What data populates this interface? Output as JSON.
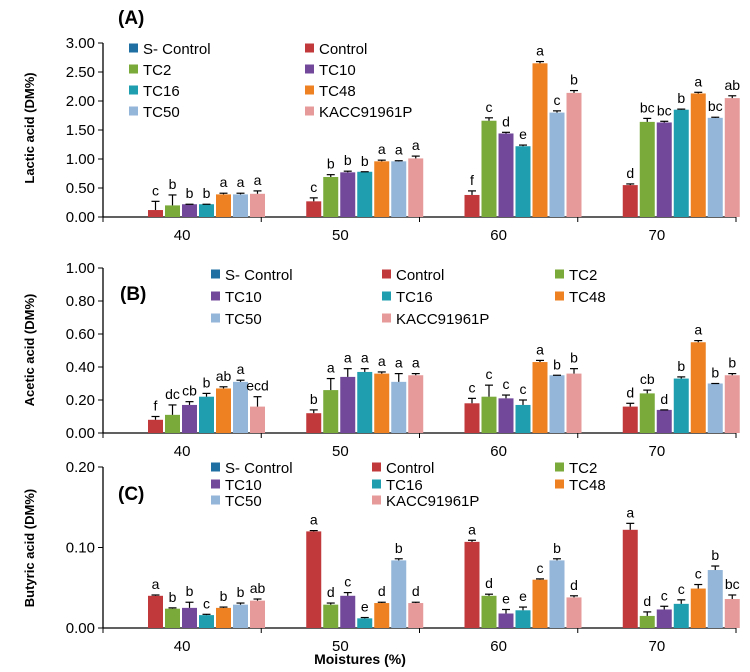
{
  "chart_data": {
    "xlabel": "Moistures (%)",
    "categories": [
      "40",
      "50",
      "60",
      "70"
    ],
    "series_names": [
      "S- Control",
      "Control",
      "TC2",
      "TC10",
      "TC16",
      "TC48",
      "TC50",
      "KACC91961P"
    ],
    "colors": [
      "#1F6FA3",
      "#C2393B",
      "#79AA3A",
      "#71489A",
      "#1E9EAF",
      "#EE8222",
      "#94B6D9",
      "#E79A9A"
    ],
    "panels": [
      {
        "type": "bar",
        "label": "(A)",
        "ylabel": "Lactic acid  (DM%)",
        "ylim": [
          0,
          3
        ],
        "ytick_labels": [
          "0.00",
          "0.50",
          "1.00",
          "1.50",
          "2.00",
          "2.50",
          "3.00"
        ],
        "legend_position": "top-left",
        "values": [
          [
            0,
            0.12,
            0.2,
            0.22,
            0.22,
            0.39,
            0.39,
            0.4
          ],
          [
            0,
            0.27,
            0.69,
            0.77,
            0.78,
            0.96,
            0.96,
            1.01
          ],
          [
            0,
            0.38,
            1.66,
            1.44,
            1.22,
            2.65,
            1.8,
            2.14
          ],
          [
            0,
            0.55,
            1.64,
            1.63,
            1.85,
            2.13,
            1.71,
            2.05
          ]
        ],
        "errors": [
          [
            0,
            0.15,
            0.18,
            0,
            0,
            0.02,
            0.02,
            0.05
          ],
          [
            0,
            0.06,
            0.04,
            0.02,
            0,
            0.02,
            0.01,
            0.04
          ],
          [
            0,
            0.07,
            0.05,
            0.02,
            0.02,
            0.03,
            0.03,
            0.04
          ],
          [
            0,
            0.02,
            0.06,
            0.02,
            0.01,
            0.02,
            0.01,
            0.04
          ]
        ],
        "letters": [
          [
            "",
            "c",
            "b",
            "b",
            "b",
            "a",
            "a",
            "a"
          ],
          [
            "",
            "c",
            "b",
            "b",
            "b",
            "a",
            "a",
            "a"
          ],
          [
            "",
            "f",
            "c",
            "d",
            "e",
            "a",
            "c",
            "b"
          ],
          [
            "",
            "d",
            "bc",
            "bc",
            "b",
            "a",
            "bc",
            "ab"
          ]
        ]
      },
      {
        "type": "bar",
        "label": "(B)",
        "ylabel": "Acetic acid  (DM%)",
        "ylim": [
          0,
          1
        ],
        "ytick_labels": [
          "0.00",
          "0.20",
          "0.40",
          "0.60",
          "0.80",
          "1.00"
        ],
        "legend_position": "top",
        "values": [
          [
            0,
            0.08,
            0.11,
            0.17,
            0.22,
            0.27,
            0.31,
            0.16
          ],
          [
            0,
            0.12,
            0.26,
            0.34,
            0.37,
            0.36,
            0.31,
            0.35
          ],
          [
            0,
            0.18,
            0.22,
            0.21,
            0.17,
            0.43,
            0.35,
            0.36
          ],
          [
            0,
            0.16,
            0.24,
            0.14,
            0.33,
            0.55,
            0.3,
            0.35
          ]
        ],
        "errors": [
          [
            0,
            0.02,
            0.06,
            0.02,
            0.02,
            0.01,
            0.01,
            0.06
          ],
          [
            0,
            0.02,
            0.07,
            0.05,
            0.02,
            0.01,
            0.05,
            0.01
          ],
          [
            0,
            0.03,
            0.07,
            0.02,
            0.03,
            0.01,
            0,
            0.03
          ],
          [
            0,
            0.02,
            0.02,
            0,
            0.01,
            0.01,
            0,
            0.01
          ]
        ],
        "letters": [
          [
            "",
            "f",
            "dc",
            "cb",
            "b",
            "ab",
            "a",
            "ecd"
          ],
          [
            "",
            "b",
            "a",
            "a",
            "a",
            "a",
            "a",
            "a"
          ],
          [
            "",
            "c",
            "c",
            "c",
            "c",
            "a",
            "b",
            "b"
          ],
          [
            "",
            "d",
            "cb",
            "d",
            "b",
            "a",
            "b",
            "b"
          ]
        ]
      },
      {
        "type": "bar",
        "label": "(C)",
        "ylabel": "Butyric acid  (DM%)",
        "ylim": [
          0,
          0.2
        ],
        "ytick_labels": [
          "0.00",
          "0.10",
          "0.20"
        ],
        "legend_position": "top",
        "values": [
          [
            0,
            0.04,
            0.024,
            0.025,
            0.016,
            0.025,
            0.029,
            0.034
          ],
          [
            0,
            0.12,
            0.029,
            0.04,
            0.012,
            0.031,
            0.084,
            0.031
          ],
          [
            0,
            0.107,
            0.04,
            0.018,
            0.022,
            0.06,
            0.084,
            0.038
          ],
          [
            0,
            0.122,
            0.015,
            0.023,
            0.03,
            0.049,
            0.072,
            0.036
          ]
        ],
        "errors": [
          [
            0,
            0.001,
            0.001,
            0.007,
            0.001,
            0.001,
            0.002,
            0.002
          ],
          [
            0,
            0.001,
            0.002,
            0.004,
            0.001,
            0.001,
            0.002,
            0.001
          ],
          [
            0,
            0.002,
            0.002,
            0.005,
            0.004,
            0.001,
            0.002,
            0.002
          ],
          [
            0,
            0.008,
            0.005,
            0.004,
            0.005,
            0.005,
            0.005,
            0.005
          ]
        ],
        "letters": [
          [
            "",
            "a",
            "b",
            "b",
            "c",
            "b",
            "b",
            "ab"
          ],
          [
            "",
            "a",
            "d",
            "c",
            "e",
            "d",
            "b",
            "d"
          ],
          [
            "",
            "a",
            "d",
            "e",
            "e",
            "c",
            "b",
            "d"
          ],
          [
            "",
            "a",
            "d",
            "c",
            "c",
            "c",
            "b",
            "bc"
          ]
        ]
      }
    ]
  }
}
